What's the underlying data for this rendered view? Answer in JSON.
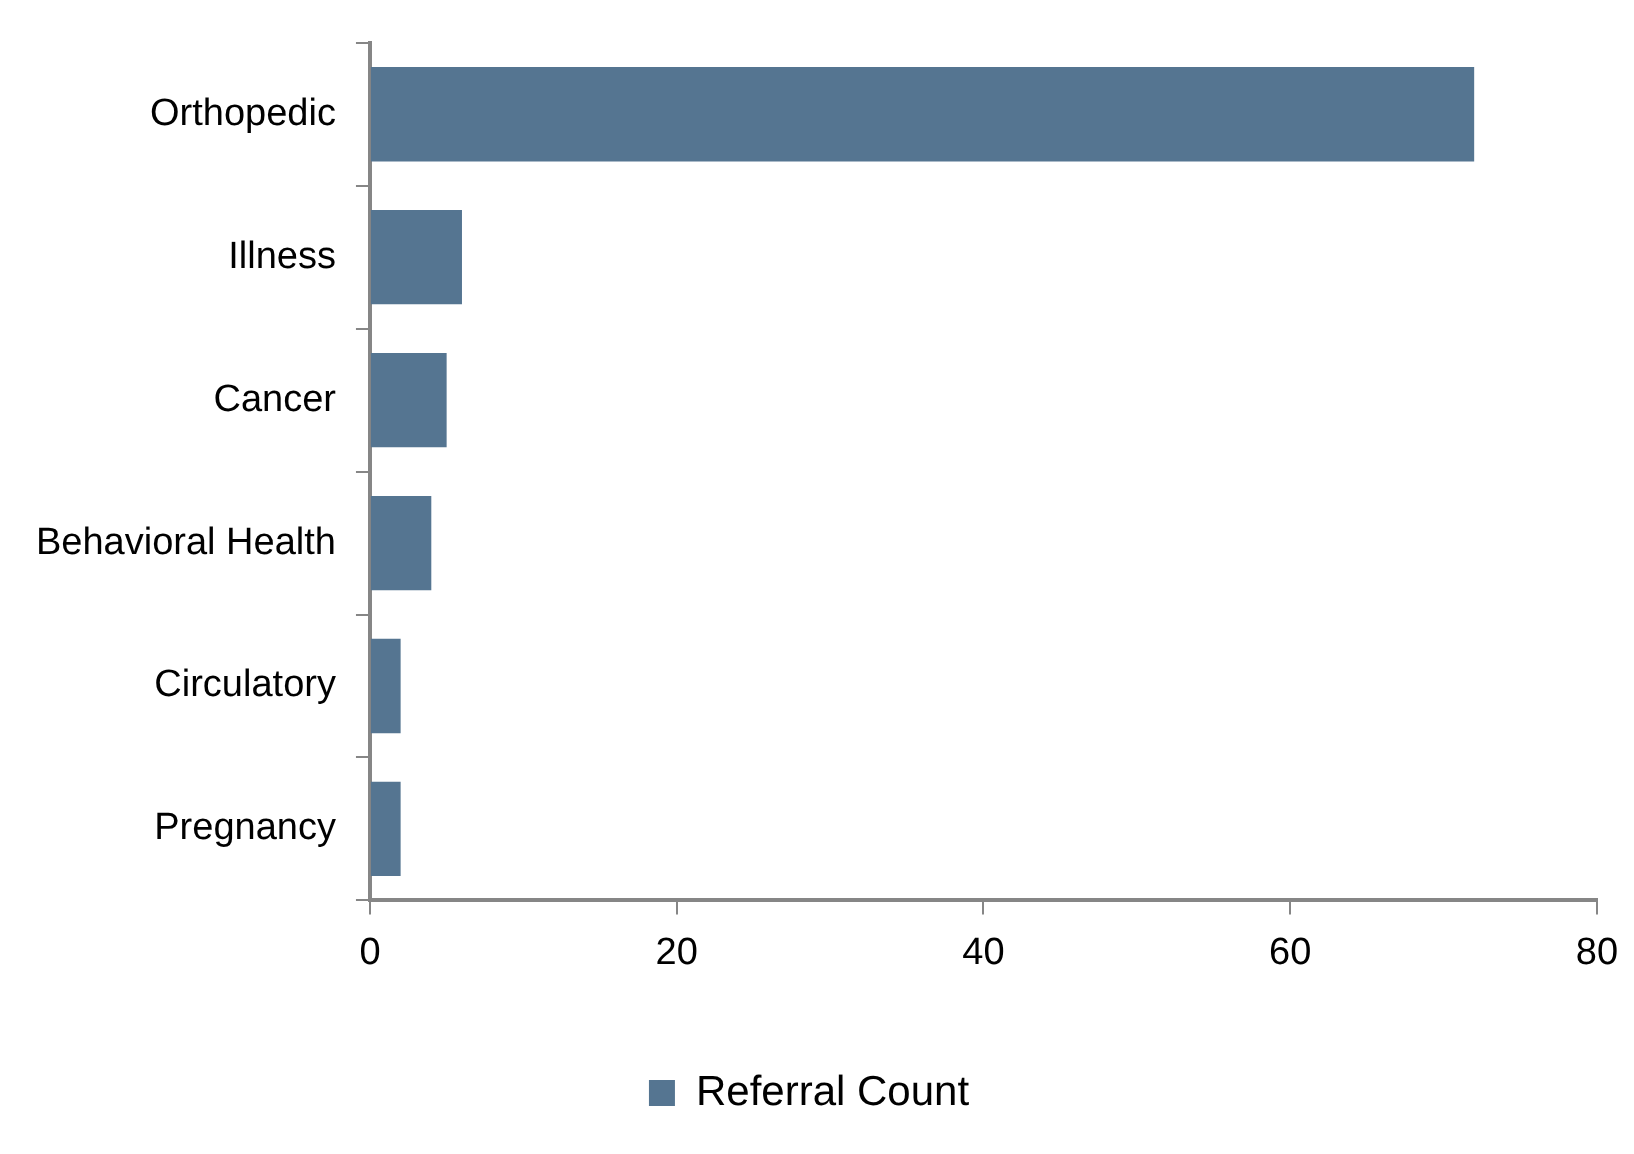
{
  "chart_data": {
    "type": "bar",
    "orientation": "horizontal",
    "categories": [
      "Orthopedic",
      "Illness",
      "Cancer",
      "Behavioral Health",
      "Circulatory",
      "Pregnancy"
    ],
    "series": [
      {
        "name": "Referral Count",
        "color": "#557591",
        "values": [
          72,
          6,
          5,
          4,
          2,
          2
        ]
      }
    ],
    "xlim": [
      0,
      80
    ],
    "xticks": [
      0,
      20,
      40,
      60,
      80
    ],
    "grid": false,
    "legend": "bottom"
  }
}
